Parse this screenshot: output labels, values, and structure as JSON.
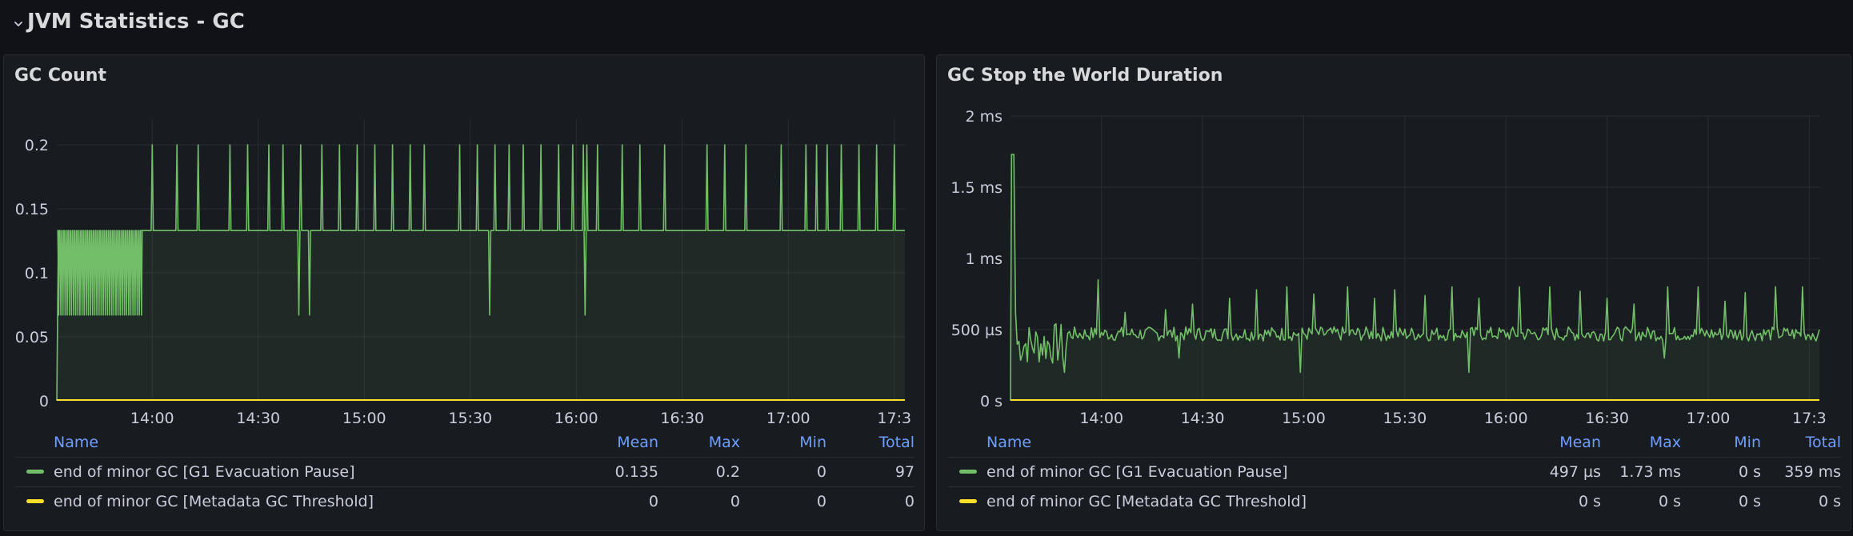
{
  "row": {
    "title": "JVM Statistics - GC"
  },
  "colors": {
    "green": "#73bf69",
    "yellow": "#fade2a",
    "legend_header": "#6e9fff"
  },
  "icons": {
    "row_toggle": "chevron-down-icon"
  },
  "panels": [
    {
      "title": "GC Count",
      "legend": {
        "headers": {
          "name": "Name",
          "mean": "Mean",
          "max": "Max",
          "min": "Min",
          "total": "Total"
        },
        "rows": [
          {
            "name": "end of minor GC [G1 Evacuation Pause]",
            "color": "#73bf69",
            "mean": "0.135",
            "max": "0.2",
            "min": "0",
            "total": "97"
          },
          {
            "name": "end of minor GC [Metadata GC Threshold]",
            "color": "#fade2a",
            "mean": "0",
            "max": "0",
            "min": "0",
            "total": "0"
          }
        ]
      }
    },
    {
      "title": "GC Stop the World Duration",
      "legend": {
        "headers": {
          "name": "Name",
          "mean": "Mean",
          "max": "Max",
          "min": "Min",
          "total": "Total"
        },
        "rows": [
          {
            "name": "end of minor GC [G1 Evacuation Pause]",
            "color": "#73bf69",
            "mean": "497 µs",
            "max": "1.73 ms",
            "min": "0 s",
            "total": "359 ms"
          },
          {
            "name": "end of minor GC [Metadata GC Threshold]",
            "color": "#fade2a",
            "mean": "0 s",
            "max": "0 s",
            "min": "0 s",
            "total": "0 s"
          }
        ]
      }
    }
  ],
  "chart_data": [
    {
      "type": "line",
      "title": "GC Count",
      "x_range": [
        "13:33",
        "17:33"
      ],
      "x_ticks": [
        "14:00",
        "14:30",
        "15:00",
        "15:30",
        "16:00",
        "16:30",
        "17:00",
        "17:3"
      ],
      "y_ticks": [
        "0",
        "0.05",
        "0.1",
        "0.15",
        "0.2"
      ],
      "y_tick_values": [
        0,
        0.05,
        0.1,
        0.15,
        0.2
      ],
      "ylim": [
        0,
        0.22
      ],
      "grid": true,
      "legend_position": "bottom",
      "series": [
        {
          "name": "end of minor GC [G1 Evacuation Pause]",
          "color": "#73bf69",
          "baseline": 0.133,
          "baseline_start": "13:33",
          "noisy_segment": {
            "from": "13:33",
            "to": "13:57",
            "low": 0.067,
            "high": 0.133
          },
          "raised_from": "13:57",
          "spike_value": 0.2,
          "spikes": [
            "14:00",
            "14:07",
            "14:13",
            "14:22",
            "14:27",
            "14:33",
            "14:37",
            "14:42",
            "14:48",
            "14:53",
            "14:58",
            "15:03",
            "15:08",
            "15:13",
            "15:17",
            "15:27",
            "15:32",
            "15:37",
            "15:41",
            "15:45",
            "15:50",
            "15:55",
            "15:59",
            "16:02",
            "16:03",
            "16:06",
            "16:13",
            "16:18",
            "16:25",
            "16:37",
            "16:42",
            "16:48",
            "16:58",
            "17:05",
            "17:08",
            "17:11",
            "17:15",
            "17:20",
            "17:25",
            "17:30"
          ],
          "dip_value": 0.067,
          "dips": [
            "14:41",
            "14:44",
            "15:35",
            "16:02"
          ]
        },
        {
          "name": "end of minor GC [Metadata GC Threshold]",
          "color": "#fade2a",
          "constant": 0
        }
      ]
    },
    {
      "type": "line",
      "title": "GC Stop the World Duration",
      "x_range": [
        "13:33",
        "17:33"
      ],
      "x_ticks": [
        "14:00",
        "14:30",
        "15:00",
        "15:30",
        "16:00",
        "16:30",
        "17:00",
        "17:3"
      ],
      "y_ticks": [
        "0 s",
        "500 µs",
        "1 ms",
        "1.5 ms",
        "2 ms"
      ],
      "y_tick_values": [
        0,
        0.5,
        1,
        1.5,
        2
      ],
      "y_unit": "ms",
      "ylim": [
        0,
        2
      ],
      "grid": true,
      "legend_position": "bottom",
      "series": [
        {
          "name": "end of minor GC [G1 Evacuation Pause]",
          "color": "#73bf69",
          "initial_peak": {
            "at": "13:34",
            "value": 1.73
          },
          "noisy_until": "13:50",
          "typical_range": [
            0.42,
            0.52
          ],
          "spikes": [
            {
              "at": "13:59",
              "value": 0.85
            },
            {
              "at": "14:07",
              "value": 0.62
            },
            {
              "at": "14:19",
              "value": 0.64
            },
            {
              "at": "14:27",
              "value": 0.68
            },
            {
              "at": "14:38",
              "value": 0.72
            },
            {
              "at": "14:46",
              "value": 0.78
            },
            {
              "at": "14:55",
              "value": 0.8
            },
            {
              "at": "15:03",
              "value": 0.75
            },
            {
              "at": "15:13",
              "value": 0.8
            },
            {
              "at": "15:21",
              "value": 0.72
            },
            {
              "at": "15:27",
              "value": 0.78
            },
            {
              "at": "15:36",
              "value": 0.74
            },
            {
              "at": "15:44",
              "value": 0.8
            },
            {
              "at": "15:52",
              "value": 0.72
            },
            {
              "at": "16:04",
              "value": 0.8
            },
            {
              "at": "16:13",
              "value": 0.8
            },
            {
              "at": "16:22",
              "value": 0.77
            },
            {
              "at": "16:30",
              "value": 0.72
            },
            {
              "at": "16:38",
              "value": 0.68
            },
            {
              "at": "16:48",
              "value": 0.8
            },
            {
              "at": "16:57",
              "value": 0.8
            },
            {
              "at": "17:05",
              "value": 0.7
            },
            {
              "at": "17:11",
              "value": 0.76
            },
            {
              "at": "17:20",
              "value": 0.8
            },
            {
              "at": "17:28",
              "value": 0.8
            }
          ],
          "drops": [
            {
              "at": "13:49",
              "value": 0.2
            },
            {
              "at": "14:59",
              "value": 0.2
            },
            {
              "at": "15:49",
              "value": 0.2
            },
            {
              "at": "16:04",
              "value": 0.25
            },
            {
              "at": "14:23",
              "value": 0.3
            },
            {
              "at": "16:47",
              "value": 0.3
            }
          ],
          "end_value": 0.5
        },
        {
          "name": "end of minor GC [Metadata GC Threshold]",
          "color": "#fade2a",
          "constant": 0
        }
      ]
    }
  ]
}
